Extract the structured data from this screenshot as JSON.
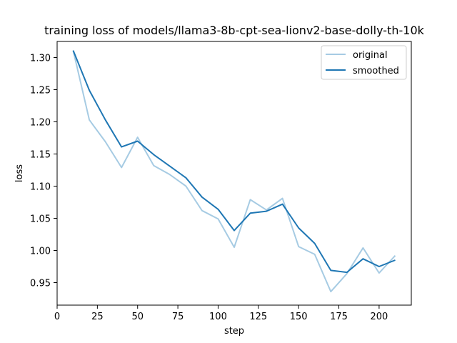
{
  "chart_data": {
    "type": "line",
    "title": "training loss of models/llama3-8b-cpt-sea-lionv2-base-dolly-th-10k",
    "xlabel": "step",
    "ylabel": "loss",
    "xlim": [
      0,
      220
    ],
    "ylim": [
      0.915,
      1.325
    ],
    "grid": false,
    "legend_position": "upper right",
    "x_ticks": [
      0,
      25,
      50,
      75,
      100,
      125,
      150,
      175,
      200
    ],
    "y_ticks": [
      0.95,
      1.0,
      1.05,
      1.1,
      1.15,
      1.2,
      1.25,
      1.3
    ],
    "x_tick_labels": [
      "0",
      "25",
      "50",
      "75",
      "100",
      "125",
      "150",
      "175",
      "200"
    ],
    "y_tick_labels": [
      "0.95",
      "1.00",
      "1.05",
      "1.10",
      "1.15",
      "1.20",
      "1.25",
      "1.30"
    ],
    "x": [
      10,
      20,
      30,
      40,
      50,
      60,
      70,
      80,
      90,
      100,
      110,
      120,
      130,
      140,
      150,
      160,
      170,
      180,
      190,
      200,
      210
    ],
    "series": [
      {
        "name": "original",
        "color": "#a6cbe3",
        "values": [
          1.311,
          1.203,
          1.169,
          1.129,
          1.176,
          1.132,
          1.118,
          1.1,
          1.062,
          1.049,
          1.005,
          1.079,
          1.063,
          1.081,
          1.006,
          0.994,
          0.936,
          0.964,
          1.004,
          0.965,
          0.992
        ]
      },
      {
        "name": "smoothed",
        "color": "#1f77b4",
        "values": [
          1.311,
          1.249,
          1.203,
          1.161,
          1.17,
          1.149,
          1.131,
          1.113,
          1.083,
          1.064,
          1.031,
          1.058,
          1.061,
          1.072,
          1.035,
          1.011,
          0.969,
          0.966,
          0.987,
          0.975,
          0.985
        ]
      }
    ]
  }
}
